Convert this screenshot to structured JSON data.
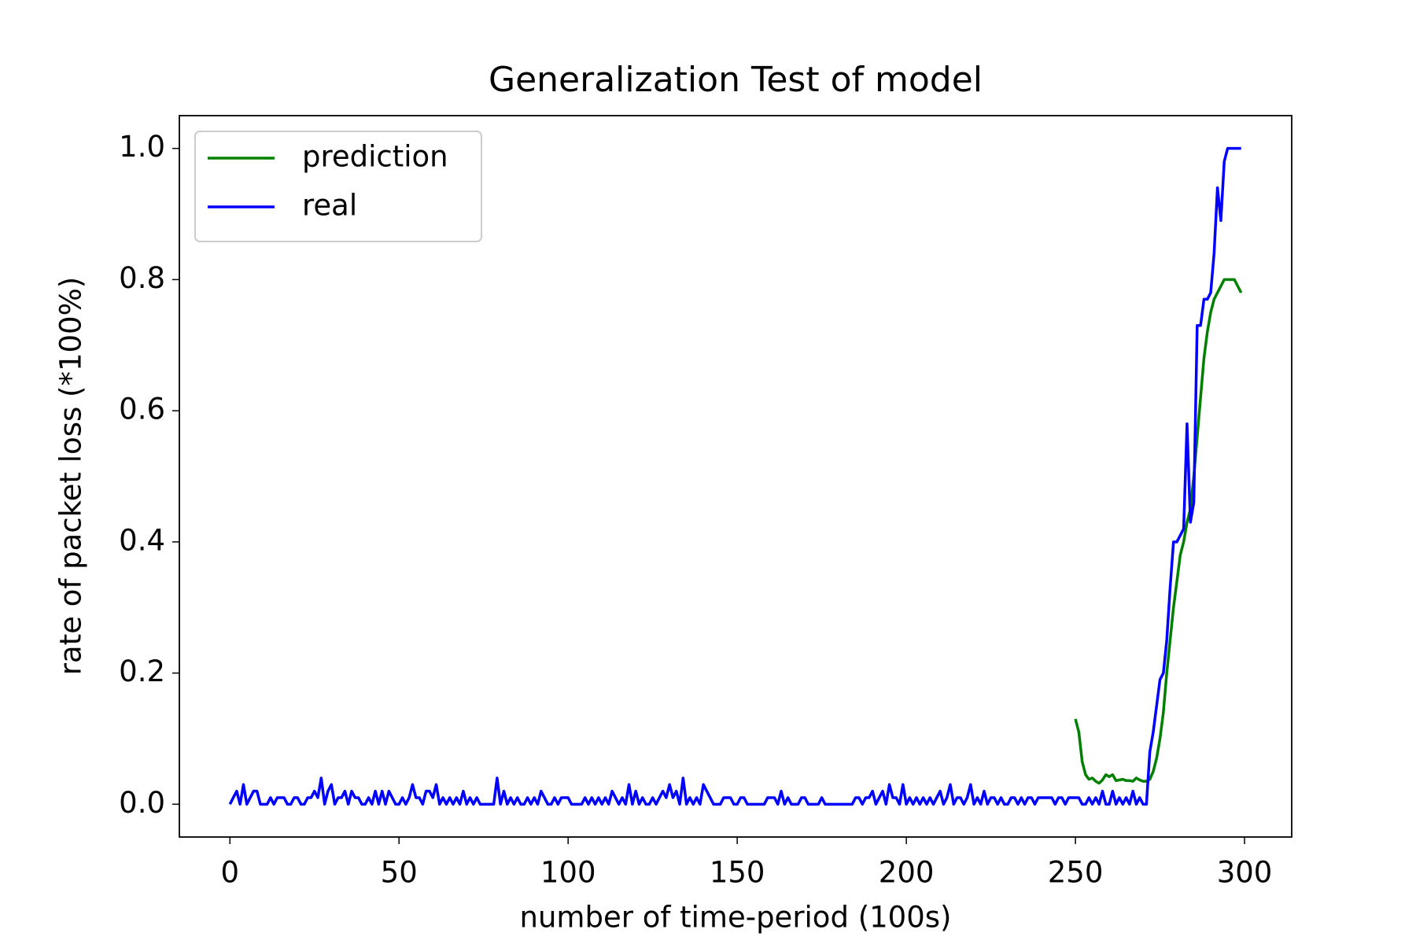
{
  "chart_data": {
    "type": "line",
    "title": "Generalization Test of model",
    "x_label": "number of time-period (100s)",
    "y_label": "rate of packet loss (*100%)",
    "xlim": [
      -14.95,
      313.95
    ],
    "ylim": [
      -0.05,
      1.05
    ],
    "xticks": [
      0,
      50,
      100,
      150,
      200,
      250,
      300
    ],
    "yticks": [
      {
        "value": 0,
        "label": "0.0"
      },
      {
        "value": 0.2,
        "label": "0.2"
      },
      {
        "value": 0.4,
        "label": "0.4"
      },
      {
        "value": 0.6,
        "label": "0.6"
      },
      {
        "value": 0.8,
        "label": "0.8"
      },
      {
        "value": 1,
        "label": "1.0"
      }
    ],
    "legend": "upper left",
    "series": [
      {
        "name": "prediction",
        "color": "#008000",
        "x": [
          250,
          251,
          252,
          253,
          254,
          255,
          256,
          257,
          258,
          259,
          260,
          261,
          262,
          263,
          264,
          265,
          266,
          267,
          268,
          269,
          270,
          271,
          272,
          273,
          274,
          275,
          276,
          277,
          278,
          279,
          280,
          281,
          282,
          283,
          284,
          285,
          286,
          287,
          288,
          289,
          290,
          291,
          292,
          293,
          294,
          295,
          296,
          297,
          298,
          299
        ],
        "values": [
          0.13,
          0.11,
          0.065,
          0.045,
          0.038,
          0.04,
          0.035,
          0.032,
          0.037,
          0.045,
          0.042,
          0.045,
          0.036,
          0.037,
          0.038,
          0.036,
          0.036,
          0.035,
          0.04,
          0.037,
          0.035,
          0.035,
          0.038,
          0.05,
          0.07,
          0.1,
          0.14,
          0.2,
          0.25,
          0.3,
          0.34,
          0.38,
          0.4,
          0.43,
          0.45,
          0.5,
          0.56,
          0.62,
          0.68,
          0.72,
          0.75,
          0.77,
          0.78,
          0.79,
          0.8,
          0.8,
          0.8,
          0.8,
          0.79,
          0.78
        ]
      },
      {
        "name": "real",
        "color": "#0000ff",
        "x": [
          0,
          1,
          2,
          3,
          4,
          5,
          6,
          7,
          8,
          9,
          10,
          11,
          12,
          13,
          14,
          15,
          16,
          17,
          18,
          19,
          20,
          21,
          22,
          23,
          24,
          25,
          26,
          27,
          28,
          29,
          30,
          31,
          32,
          33,
          34,
          35,
          36,
          37,
          38,
          39,
          40,
          41,
          42,
          43,
          44,
          45,
          46,
          47,
          48,
          49,
          50,
          51,
          52,
          53,
          54,
          55,
          56,
          57,
          58,
          59,
          60,
          61,
          62,
          63,
          64,
          65,
          66,
          67,
          68,
          69,
          70,
          71,
          72,
          73,
          74,
          75,
          76,
          77,
          78,
          79,
          80,
          81,
          82,
          83,
          84,
          85,
          86,
          87,
          88,
          89,
          90,
          91,
          92,
          93,
          94,
          95,
          96,
          97,
          98,
          99,
          100,
          101,
          102,
          103,
          104,
          105,
          106,
          107,
          108,
          109,
          110,
          111,
          112,
          113,
          114,
          115,
          116,
          117,
          118,
          119,
          120,
          121,
          122,
          123,
          124,
          125,
          126,
          127,
          128,
          129,
          130,
          131,
          132,
          133,
          134,
          135,
          136,
          137,
          138,
          139,
          140,
          141,
          142,
          143,
          144,
          145,
          146,
          147,
          148,
          149,
          150,
          151,
          152,
          153,
          154,
          155,
          156,
          157,
          158,
          159,
          160,
          161,
          162,
          163,
          164,
          165,
          166,
          167,
          168,
          169,
          170,
          171,
          172,
          173,
          174,
          175,
          176,
          177,
          178,
          179,
          180,
          181,
          182,
          183,
          184,
          185,
          186,
          187,
          188,
          189,
          190,
          191,
          192,
          193,
          194,
          195,
          196,
          197,
          198,
          199,
          200,
          201,
          202,
          203,
          204,
          205,
          206,
          207,
          208,
          209,
          210,
          211,
          212,
          213,
          214,
          215,
          216,
          217,
          218,
          219,
          220,
          221,
          222,
          223,
          224,
          225,
          226,
          227,
          228,
          229,
          230,
          231,
          232,
          233,
          234,
          235,
          236,
          237,
          238,
          239,
          240,
          241,
          242,
          243,
          244,
          245,
          246,
          247,
          248,
          249,
          250,
          251,
          252,
          253,
          254,
          255,
          256,
          257,
          258,
          259,
          260,
          261,
          262,
          263,
          264,
          265,
          266,
          267,
          268,
          269,
          270,
          271,
          272,
          273,
          274,
          275,
          276,
          277,
          278,
          279,
          280,
          281,
          282,
          283,
          284,
          285,
          286,
          287,
          288,
          289,
          290,
          291,
          292,
          293,
          294,
          295,
          296,
          297,
          298,
          299
        ],
        "values": [
          0,
          0.01,
          0.02,
          0,
          0.03,
          0,
          0.01,
          0.02,
          0.02,
          0,
          0,
          0,
          0.01,
          0,
          0.01,
          0.01,
          0.01,
          0,
          0,
          0.01,
          0.01,
          0,
          0,
          0.01,
          0.01,
          0.02,
          0.01,
          0.04,
          0,
          0.02,
          0.03,
          0,
          0.01,
          0.01,
          0.02,
          0,
          0.02,
          0.01,
          0.01,
          0,
          0,
          0.01,
          0,
          0.02,
          0,
          0.02,
          0,
          0.02,
          0.01,
          0,
          0,
          0.01,
          0,
          0.01,
          0.03,
          0.01,
          0.01,
          0,
          0.02,
          0.02,
          0.01,
          0.03,
          0,
          0.01,
          0,
          0.01,
          0,
          0.01,
          0,
          0.02,
          0,
          0.01,
          0,
          0.01,
          0,
          0,
          0,
          0,
          0,
          0.04,
          0,
          0.02,
          0,
          0.01,
          0,
          0.01,
          0,
          0,
          0.01,
          0,
          0.01,
          0,
          0.02,
          0.01,
          0,
          0,
          0.01,
          0,
          0.01,
          0.01,
          0.01,
          0,
          0,
          0,
          0,
          0.01,
          0,
          0.01,
          0,
          0.01,
          0,
          0.01,
          0,
          0.02,
          0.01,
          0,
          0.01,
          0,
          0.03,
          0,
          0.02,
          0,
          0.01,
          0,
          0,
          0.01,
          0,
          0.01,
          0.02,
          0.01,
          0.03,
          0.01,
          0.02,
          0,
          0.04,
          0,
          0.01,
          0,
          0.01,
          0,
          0.03,
          0.02,
          0.01,
          0,
          0,
          0,
          0.01,
          0.01,
          0.01,
          0,
          0,
          0.01,
          0.01,
          0,
          0,
          0,
          0,
          0,
          0,
          0.01,
          0.01,
          0.01,
          0,
          0.02,
          0,
          0.01,
          0,
          0,
          0,
          0.01,
          0.01,
          0,
          0,
          0,
          0,
          0.01,
          0,
          0,
          0,
          0,
          0,
          0,
          0,
          0,
          0,
          0.01,
          0.01,
          0,
          0.01,
          0.01,
          0.02,
          0,
          0.01,
          0.02,
          0,
          0.03,
          0.01,
          0.01,
          0,
          0.03,
          0,
          0.01,
          0,
          0.01,
          0,
          0.01,
          0,
          0.01,
          0,
          0.01,
          0.02,
          0,
          0.01,
          0.03,
          0,
          0.01,
          0.01,
          0,
          0.01,
          0.03,
          0,
          0.01,
          0,
          0.02,
          0,
          0.01,
          0.01,
          0,
          0.01,
          0,
          0,
          0.01,
          0.01,
          0,
          0.01,
          0,
          0.01,
          0.01,
          0,
          0.01,
          0.01,
          0.01,
          0.01,
          0.01,
          0,
          0.01,
          0.01,
          0,
          0.01,
          0.01,
          0.01,
          0.01,
          0,
          0,
          0.01,
          0,
          0.01,
          0,
          0.02,
          0,
          0,
          0.02,
          0,
          0.01,
          0,
          0.01,
          0,
          0.02,
          0,
          0.01,
          0,
          0,
          0.08,
          0.11,
          0.15,
          0.19,
          0.2,
          0.25,
          0.33,
          0.4,
          0.4,
          0.41,
          0.42,
          0.58,
          0.43,
          0.46,
          0.73,
          0.73,
          0.77,
          0.77,
          0.78,
          0.84,
          0.94,
          0.89,
          0.98,
          1,
          1,
          1,
          1,
          1
        ]
      }
    ]
  }
}
